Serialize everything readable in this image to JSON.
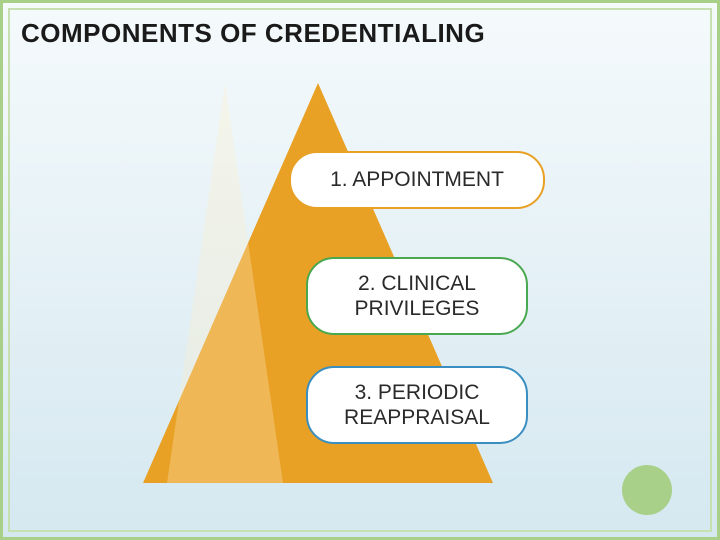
{
  "title": "COMPONENTS OF CREDENTIALING",
  "background": {
    "gradient_top": "#f5fafc",
    "gradient_bottom": "#d5e8f0",
    "outer_border_color": "#a8d088",
    "inner_border_color": "#c8e0b0"
  },
  "triangle": {
    "fill_color": "#e8a025",
    "highlight_color": "#ffedc8"
  },
  "pills": {
    "item1": {
      "text": "1. APPOINTMENT",
      "border_color": "#e8a025"
    },
    "item2": {
      "text": "2. CLINICAL PRIVILEGES",
      "border_color": "#4aa850"
    },
    "item3": {
      "text": "3. PERIODIC REAPPRAISAL",
      "border_color": "#3a8fc0"
    }
  },
  "decoration": {
    "circle_color": "#a8d088"
  },
  "typography": {
    "title_fontsize": 26,
    "title_weight": "bold",
    "pill_fontsize": 21,
    "font_family": "Arial"
  }
}
